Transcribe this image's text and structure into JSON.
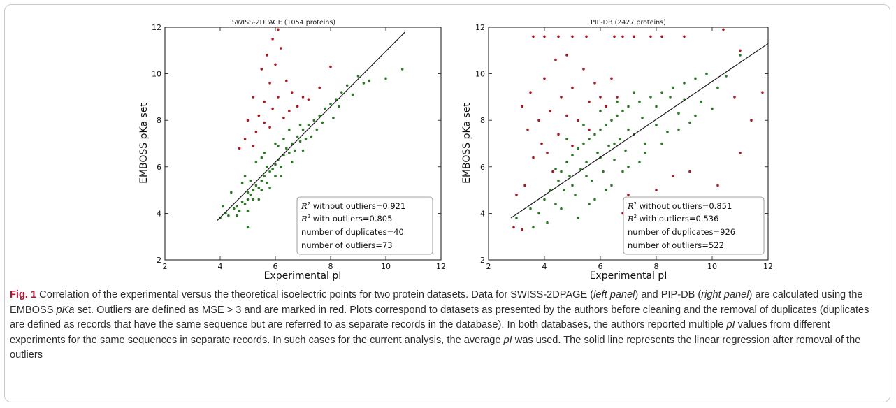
{
  "colors": {
    "outlier": "#b0161e",
    "inlier": "#2a7a22",
    "regression": "#1a1a1a",
    "figure_label": "#b5122e"
  },
  "chart_data": [
    {
      "type": "scatter",
      "title": "SWISS-2DPAGE (1054 proteins)",
      "xlabel": "Experimental pI",
      "ylabel": "EMBOSS pKa set",
      "xlim": [
        2,
        12
      ],
      "ylim": [
        2,
        12
      ],
      "xticks": [
        "2",
        "4",
        "6",
        "8",
        "10",
        "12"
      ],
      "yticks": [
        "2",
        "4",
        "6",
        "8",
        "10",
        "12"
      ],
      "grid": false,
      "legend_position": "bottom-right",
      "regression_line": {
        "x": [
          3.9,
          10.7
        ],
        "y": [
          3.7,
          11.8
        ]
      },
      "stats": [
        {
          "label": "without outliers",
          "value": "0.921",
          "r2": true
        },
        {
          "label": "with outliers",
          "value": "0.805",
          "r2": true
        },
        {
          "label": "number of duplicates",
          "value": "40",
          "r2": false
        },
        {
          "label": "number of outliers",
          "value": "73",
          "r2": false
        }
      ],
      "series": [
        {
          "color_key": "inlier",
          "points": [
            [
              4.0,
              3.8
            ],
            [
              4.2,
              4.0
            ],
            [
              4.3,
              3.9
            ],
            [
              4.5,
              4.2
            ],
            [
              4.6,
              4.3
            ],
            [
              4.7,
              4.1
            ],
            [
              4.8,
              4.5
            ],
            [
              4.9,
              4.4
            ],
            [
              5.0,
              4.6
            ],
            [
              5.0,
              4.9
            ],
            [
              5.1,
              4.8
            ],
            [
              5.2,
              5.0
            ],
            [
              5.2,
              4.6
            ],
            [
              5.3,
              5.2
            ],
            [
              5.4,
              5.1
            ],
            [
              5.5,
              5.4
            ],
            [
              5.5,
              5.0
            ],
            [
              5.6,
              5.6
            ],
            [
              5.7,
              5.3
            ],
            [
              5.8,
              5.8
            ],
            [
              5.9,
              5.9
            ],
            [
              6.0,
              6.1
            ],
            [
              6.0,
              5.6
            ],
            [
              6.1,
              6.3
            ],
            [
              6.2,
              6.0
            ],
            [
              6.3,
              6.5
            ],
            [
              6.4,
              6.8
            ],
            [
              6.5,
              6.6
            ],
            [
              6.6,
              7.0
            ],
            [
              6.7,
              6.7
            ],
            [
              6.8,
              7.3
            ],
            [
              6.9,
              7.1
            ],
            [
              7.0,
              7.6
            ],
            [
              7.1,
              7.2
            ],
            [
              7.2,
              7.8
            ],
            [
              7.4,
              8.0
            ],
            [
              7.5,
              7.6
            ],
            [
              7.6,
              8.2
            ],
            [
              7.8,
              8.5
            ],
            [
              8.0,
              8.7
            ],
            [
              8.2,
              8.9
            ],
            [
              8.4,
              9.2
            ],
            [
              8.6,
              9.5
            ],
            [
              9.0,
              9.9
            ],
            [
              9.4,
              9.7
            ],
            [
              4.4,
              4.9
            ],
            [
              4.9,
              5.6
            ],
            [
              5.3,
              6.2
            ],
            [
              5.6,
              6.6
            ],
            [
              6.0,
              7.0
            ],
            [
              5.0,
              4.1
            ],
            [
              5.4,
              4.6
            ],
            [
              5.8,
              5.1
            ],
            [
              6.2,
              5.6
            ],
            [
              6.6,
              6.2
            ],
            [
              7.0,
              6.7
            ],
            [
              4.1,
              4.3
            ],
            [
              4.6,
              3.9
            ],
            [
              5.1,
              5.4
            ],
            [
              5.7,
              6.0
            ],
            [
              6.3,
              7.2
            ],
            [
              6.9,
              7.8
            ],
            [
              7.3,
              7.3
            ],
            [
              7.7,
              7.9
            ],
            [
              8.1,
              8.1
            ],
            [
              8.3,
              8.6
            ],
            [
              8.8,
              9.1
            ],
            [
              9.2,
              9.6
            ],
            [
              10.6,
              10.2
            ],
            [
              10.0,
              9.8
            ],
            [
              5.0,
              3.4
            ],
            [
              4.8,
              5.3
            ],
            [
              5.5,
              6.4
            ],
            [
              6.1,
              6.9
            ],
            [
              6.5,
              7.6
            ]
          ]
        },
        {
          "color_key": "outlier",
          "points": [
            [
              5.9,
              11.5
            ],
            [
              6.1,
              11.9
            ],
            [
              5.7,
              10.8
            ],
            [
              6.2,
              11.1
            ],
            [
              5.5,
              10.2
            ],
            [
              6.0,
              10.4
            ],
            [
              6.4,
              9.7
            ],
            [
              5.8,
              9.6
            ],
            [
              5.2,
              9.0
            ],
            [
              5.6,
              8.8
            ],
            [
              6.6,
              9.2
            ],
            [
              7.0,
              9.0
            ],
            [
              5.4,
              8.2
            ],
            [
              5.9,
              8.5
            ],
            [
              6.3,
              8.1
            ],
            [
              6.8,
              8.6
            ],
            [
              5.0,
              8.0
            ],
            [
              5.3,
              7.5
            ],
            [
              5.8,
              7.7
            ],
            [
              4.9,
              7.2
            ],
            [
              5.2,
              6.9
            ],
            [
              6.5,
              8.4
            ],
            [
              7.2,
              8.9
            ],
            [
              7.6,
              9.4
            ],
            [
              8.0,
              10.3
            ],
            [
              4.7,
              6.8
            ],
            [
              5.6,
              7.9
            ],
            [
              6.1,
              9.0
            ]
          ]
        }
      ]
    },
    {
      "type": "scatter",
      "title": "PIP-DB (2427 proteins)",
      "xlabel": "Experimental pI",
      "ylabel": "EMBOSS pKa set",
      "xlim": [
        2,
        12
      ],
      "ylim": [
        2,
        12
      ],
      "xticks": [
        "2",
        "4",
        "6",
        "8",
        "10",
        "12"
      ],
      "yticks": [
        "2",
        "4",
        "6",
        "8",
        "10",
        "12"
      ],
      "grid": false,
      "legend_position": "bottom-right",
      "regression_line": {
        "x": [
          2.8,
          12.0
        ],
        "y": [
          3.8,
          11.3
        ]
      },
      "stats": [
        {
          "label": "without outliers",
          "value": "0.851",
          "r2": true
        },
        {
          "label": "with outliers",
          "value": "0.536",
          "r2": true
        },
        {
          "label": "number of duplicates",
          "value": "926",
          "r2": false
        },
        {
          "label": "number of outliers",
          "value": "522",
          "r2": false
        }
      ],
      "series": [
        {
          "color_key": "inlier",
          "points": [
            [
              3.0,
              3.8
            ],
            [
              3.5,
              4.2
            ],
            [
              3.8,
              4.0
            ],
            [
              4.0,
              4.6
            ],
            [
              4.2,
              5.0
            ],
            [
              4.4,
              4.4
            ],
            [
              4.5,
              5.4
            ],
            [
              4.6,
              5.8
            ],
            [
              4.7,
              5.0
            ],
            [
              4.8,
              6.2
            ],
            [
              4.9,
              5.6
            ],
            [
              5.0,
              6.5
            ],
            [
              5.1,
              4.8
            ],
            [
              5.2,
              6.8
            ],
            [
              5.3,
              5.9
            ],
            [
              5.4,
              7.0
            ],
            [
              5.5,
              6.2
            ],
            [
              5.6,
              7.2
            ],
            [
              5.7,
              5.4
            ],
            [
              5.8,
              7.4
            ],
            [
              5.9,
              6.6
            ],
            [
              6.0,
              7.6
            ],
            [
              6.1,
              5.8
            ],
            [
              6.2,
              7.8
            ],
            [
              6.3,
              6.9
            ],
            [
              6.4,
              8.0
            ],
            [
              6.5,
              6.3
            ],
            [
              6.6,
              8.2
            ],
            [
              6.7,
              7.2
            ],
            [
              6.8,
              8.4
            ],
            [
              6.9,
              6.7
            ],
            [
              7.0,
              8.6
            ],
            [
              7.2,
              7.4
            ],
            [
              7.4,
              8.8
            ],
            [
              7.6,
              7.0
            ],
            [
              7.8,
              9.0
            ],
            [
              8.0,
              7.8
            ],
            [
              8.2,
              9.2
            ],
            [
              8.4,
              7.5
            ],
            [
              8.6,
              9.4
            ],
            [
              8.8,
              8.3
            ],
            [
              9.0,
              9.6
            ],
            [
              9.2,
              7.9
            ],
            [
              9.4,
              9.8
            ],
            [
              9.6,
              8.8
            ],
            [
              9.8,
              10.0
            ],
            [
              10.0,
              8.5
            ],
            [
              10.2,
              9.4
            ],
            [
              10.5,
              9.9
            ],
            [
              11.0,
              10.8
            ],
            [
              4.6,
              4.2
            ],
            [
              5.0,
              5.2
            ],
            [
              5.5,
              5.6
            ],
            [
              6.0,
              6.4
            ],
            [
              6.5,
              7.0
            ],
            [
              7.0,
              7.6
            ],
            [
              7.5,
              8.1
            ],
            [
              8.0,
              8.6
            ],
            [
              8.5,
              9.0
            ],
            [
              9.0,
              8.9
            ],
            [
              5.2,
              3.8
            ],
            [
              5.8,
              4.6
            ],
            [
              6.4,
              5.2
            ],
            [
              7.0,
              6.0
            ],
            [
              7.6,
              6.6
            ],
            [
              8.2,
              7.0
            ],
            [
              8.8,
              7.6
            ],
            [
              9.4,
              8.2
            ],
            [
              4.8,
              7.2
            ],
            [
              5.4,
              7.8
            ],
            [
              6.0,
              8.4
            ],
            [
              6.6,
              8.8
            ],
            [
              7.2,
              9.2
            ],
            [
              3.6,
              3.4
            ],
            [
              4.1,
              3.6
            ],
            [
              4.4,
              5.9
            ],
            [
              5.6,
              4.4
            ],
            [
              6.2,
              5.0
            ],
            [
              6.8,
              5.8
            ],
            [
              7.4,
              6.2
            ]
          ]
        },
        {
          "color_key": "outlier",
          "points": [
            [
              3.2,
              8.6
            ],
            [
              3.5,
              9.2
            ],
            [
              3.4,
              7.6
            ],
            [
              3.8,
              8.0
            ],
            [
              4.0,
              9.8
            ],
            [
              4.2,
              8.4
            ],
            [
              3.9,
              7.0
            ],
            [
              4.4,
              10.6
            ],
            [
              4.6,
              9.0
            ],
            [
              4.8,
              8.2
            ],
            [
              4.1,
              6.6
            ],
            [
              3.6,
              6.4
            ],
            [
              4.5,
              7.4
            ],
            [
              5.0,
              9.4
            ],
            [
              5.2,
              8.0
            ],
            [
              5.4,
              10.2
            ],
            [
              5.6,
              8.8
            ],
            [
              5.8,
              9.6
            ],
            [
              6.0,
              9.0
            ],
            [
              6.2,
              8.6
            ],
            [
              6.4,
              9.8
            ],
            [
              3.6,
              11.6
            ],
            [
              4.0,
              11.6
            ],
            [
              4.5,
              11.6
            ],
            [
              5.0,
              11.6
            ],
            [
              5.5,
              11.6
            ],
            [
              6.5,
              11.6
            ],
            [
              6.8,
              11.6
            ],
            [
              7.2,
              11.6
            ],
            [
              7.8,
              11.6
            ],
            [
              8.2,
              11.6
            ],
            [
              9.0,
              11.6
            ],
            [
              4.8,
              10.8
            ],
            [
              3.3,
              5.2
            ],
            [
              3.0,
              4.8
            ],
            [
              2.9,
              3.4
            ],
            [
              3.2,
              3.3
            ],
            [
              7.0,
              4.8
            ],
            [
              7.6,
              4.4
            ],
            [
              8.0,
              5.0
            ],
            [
              8.6,
              5.6
            ],
            [
              9.0,
              4.0
            ],
            [
              9.6,
              4.6
            ],
            [
              10.2,
              5.2
            ],
            [
              10.6,
              3.8
            ],
            [
              11.0,
              6.6
            ],
            [
              11.8,
              9.2
            ],
            [
              11.4,
              8.0
            ],
            [
              10.8,
              9.0
            ],
            [
              6.8,
              4.0
            ],
            [
              7.4,
              3.6
            ],
            [
              8.4,
              3.8
            ],
            [
              9.2,
              5.8
            ],
            [
              5.6,
              7.6
            ],
            [
              5.0,
              6.9
            ],
            [
              6.6,
              9.0
            ],
            [
              4.3,
              5.8
            ],
            [
              10.4,
              11.9
            ],
            [
              11.0,
              11.0
            ]
          ]
        }
      ]
    }
  ],
  "caption": {
    "fig_label": "Fig. 1",
    "part1": " Correlation of the experimental versus the theoretical isoelectric points for two protein datasets. Data for SWISS-2DPAGE (",
    "left_panel": "left panel",
    "part2": ") and PIP-DB (",
    "right_panel": "right panel",
    "part3": ") are calculated using the EMBOSS ",
    "pka": "pKa",
    "part4": " set. Outliers are defined as MSE > 3 and are marked in red. Plots correspond to datasets as presented by the authors before cleaning and the removal of duplicates (duplicates are defined as records that have the same sequence but are referred to as separate records in the database). In both databases, the authors reported multiple ",
    "pi1": "pI",
    "part5": " values from different experiments for the same sequences in separate records. In such cases for the current analysis, the average ",
    "pi2": "pI",
    "part6": " was used. The solid line represents the linear regression after removal of the outliers"
  }
}
